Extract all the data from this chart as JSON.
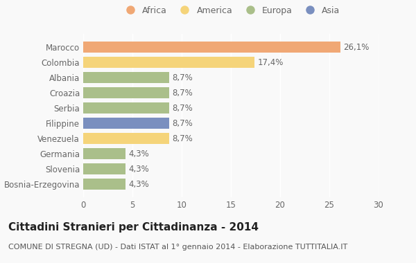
{
  "categories": [
    "Marocco",
    "Colombia",
    "Albania",
    "Croazia",
    "Serbia",
    "Filippine",
    "Venezuela",
    "Germania",
    "Slovenia",
    "Bosnia-Erzegovina"
  ],
  "values": [
    26.1,
    17.4,
    8.7,
    8.7,
    8.7,
    8.7,
    8.7,
    4.3,
    4.3,
    4.3
  ],
  "labels": [
    "26,1%",
    "17,4%",
    "8,7%",
    "8,7%",
    "8,7%",
    "8,7%",
    "8,7%",
    "4,3%",
    "4,3%",
    "4,3%"
  ],
  "bar_colors": [
    "#F0A875",
    "#F5D47A",
    "#AABF8A",
    "#AABF8A",
    "#AABF8A",
    "#7A8FBF",
    "#F5D47A",
    "#AABF8A",
    "#AABF8A",
    "#AABF8A"
  ],
  "legend_labels": [
    "Africa",
    "America",
    "Europa",
    "Asia"
  ],
  "legend_colors": [
    "#F0A875",
    "#F5D47A",
    "#AABF8A",
    "#7A8FBF"
  ],
  "xlim": [
    0,
    30
  ],
  "xticks": [
    0,
    5,
    10,
    15,
    20,
    25,
    30
  ],
  "title": "Cittadini Stranieri per Cittadinanza - 2014",
  "subtitle": "COMUNE DI STREGNA (UD) - Dati ISTAT al 1° gennaio 2014 - Elaborazione TUTTITALIA.IT",
  "background_color": "#f9f9f9",
  "bar_height": 0.72,
  "title_fontsize": 11,
  "subtitle_fontsize": 8,
  "tick_fontsize": 8.5,
  "label_fontsize": 8.5,
  "legend_fontsize": 9
}
